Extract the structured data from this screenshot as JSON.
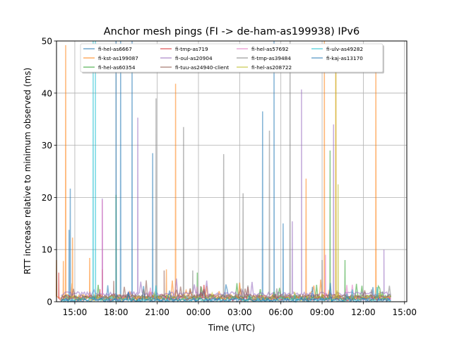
{
  "chart_data": {
    "type": "line",
    "title": "Anchor mesh pings (FI -> de-ham-as199938) IPv6",
    "xlabel": "Time (UTC)",
    "ylabel": "RTT increase relative to minimum observed (ms)",
    "xlim": [
      "13:40",
      "15:10 (+1 day)"
    ],
    "ylim": [
      0,
      50
    ],
    "x_ticks": [
      "15:00",
      "18:00",
      "21:00",
      "00:00",
      "03:00",
      "06:00",
      "09:00",
      "12:00",
      "15:00"
    ],
    "y_ticks": [
      0,
      10,
      20,
      30,
      40,
      50
    ],
    "grid": true,
    "legend_position": "top (upper center, inside)",
    "series": [
      {
        "name": "fi-hel-as6667",
        "color": "#1f77b4",
        "baseline": 0.5,
        "spikes": [
          [
            "14:40",
            21.7
          ],
          [
            "14:35",
            13.8
          ],
          [
            "18:20",
            50
          ],
          [
            "19:10",
            50
          ],
          [
            "20:40",
            28.5
          ],
          [
            "04:40",
            36.5
          ],
          [
            "05:30",
            50
          ],
          [
            "06:10",
            15
          ]
        ]
      },
      {
        "name": "fi-kst-as199087",
        "color": "#ff7f0e",
        "baseline": 1.0,
        "spikes": [
          [
            "14:10",
            7.8
          ],
          [
            "14:20",
            49.2
          ],
          [
            "14:50",
            12.3
          ],
          [
            "16:05",
            8.4
          ],
          [
            "17:00",
            6.2
          ],
          [
            "21:40",
            6.2
          ],
          [
            "22:20",
            41.8
          ],
          [
            "07:50",
            23.6
          ],
          [
            "09:10",
            50
          ],
          [
            "10:00",
            45
          ],
          [
            "12:55",
            45
          ],
          [
            "13:40",
            8
          ]
        ]
      },
      {
        "name": "fi-hel-as60354",
        "color": "#2ca02c",
        "baseline": 0.8,
        "spikes": [
          [
            "18:00",
            20.5
          ],
          [
            "23:55",
            5.6
          ],
          [
            "09:35",
            29
          ],
          [
            "10:40",
            8
          ]
        ]
      },
      {
        "name": "fi-tmp-as719",
        "color": "#d62728",
        "baseline": 0.6,
        "spikes": [
          [
            "16:50",
            2.4
          ],
          [
            "10:10",
            1.8
          ],
          [
            "13:50",
            5.6
          ]
        ]
      },
      {
        "name": "fi-oul-as20904",
        "color": "#9467bd",
        "baseline": 1.5,
        "plateau": {
          "from": "02:30",
          "to": "14:00",
          "level": 3.8
        },
        "spikes": [
          [
            "17:00",
            19.8
          ],
          [
            "19:35",
            35.3
          ],
          [
            "06:50",
            15.4
          ],
          [
            "07:30",
            40.7
          ],
          [
            "09:50",
            34
          ],
          [
            "13:30",
            10
          ]
        ]
      },
      {
        "name": "fi-tuu-as24940-client",
        "color": "#8c564b",
        "baseline": 1.0,
        "spikes": [
          [
            "17:50",
            4
          ],
          [
            "21:30",
            6
          ],
          [
            "00:10",
            3
          ]
        ]
      },
      {
        "name": "fi-hel-as57692",
        "color": "#e377c2",
        "baseline": 0.7,
        "spikes": [
          [
            "17:00",
            19.5
          ],
          [
            "09:15",
            9
          ]
        ]
      },
      {
        "name": "fi-tmp-as39484",
        "color": "#7f7f7f",
        "baseline": 0.9,
        "plateau": {
          "from": "02:10",
          "to": "14:00",
          "level": 7.6
        },
        "spikes": [
          [
            "20:55",
            39
          ],
          [
            "22:55",
            33.5
          ],
          [
            "23:35",
            6
          ],
          [
            "01:50",
            28.3
          ],
          [
            "03:15",
            20.8
          ],
          [
            "05:10",
            32.8
          ],
          [
            "06:40",
            50
          ],
          [
            "09:00",
            8
          ]
        ]
      },
      {
        "name": "fi-hel-as208722",
        "color": "#bcbd22",
        "baseline": 0.6,
        "spikes": [
          [
            "10:00",
            46
          ],
          [
            "10:10",
            22.5
          ]
        ]
      },
      {
        "name": "fi-ulv-as49282",
        "color": "#17becf",
        "baseline": 0.4,
        "spikes": [
          [
            "16:20",
            50
          ],
          [
            "16:30",
            50
          ]
        ]
      },
      {
        "name": "fi-kaj-as13170",
        "color": "#1f77b4",
        "baseline": 0.3,
        "spikes": [
          [
            "18:00",
            50
          ]
        ]
      }
    ]
  }
}
